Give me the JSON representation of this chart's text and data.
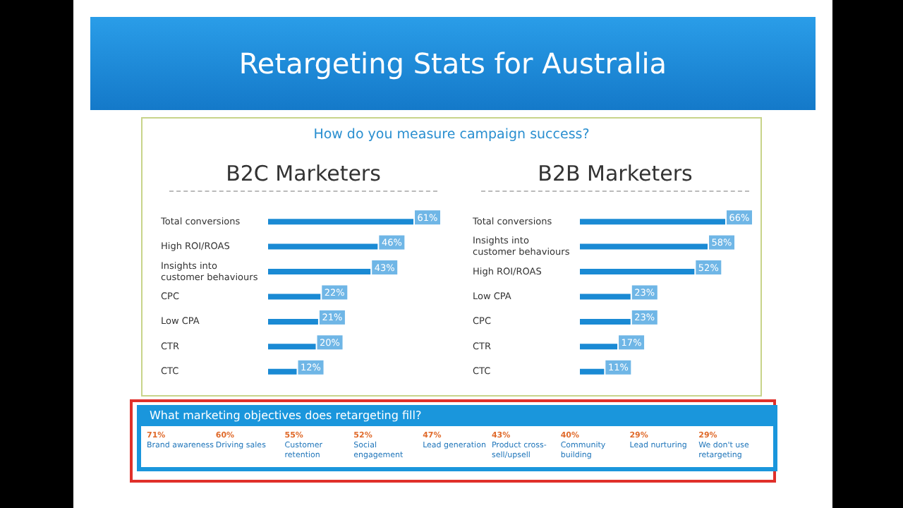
{
  "chart_data": [
    {
      "type": "bar",
      "orientation": "horizontal",
      "title": "Retargeting Stats for Australia",
      "subtitle": "How do you measure campaign success?",
      "annotations": [
        "B2C Marketers"
      ],
      "categories": [
        "Total conversions",
        "High ROI/ROAS",
        "Insights into customer behaviours",
        "CPC",
        "Low CPA",
        "CTR",
        "CTC"
      ],
      "series": [
        {
          "color": "#1a8ad4",
          "values": [
            61,
            46,
            43,
            22,
            21,
            20,
            12
          ],
          "value_labels": [
            "61%",
            "46%",
            "43%",
            "22%",
            "21%",
            "20%",
            "12%"
          ]
        }
      ]
    },
    {
      "type": "bar",
      "orientation": "horizontal",
      "title": "B2B Marketers",
      "categories": [
        "Total conversions",
        "Insights into customer behaviours",
        "High ROI/ROAS",
        "Low CPA",
        "CPC",
        "CTR",
        "CTC"
      ],
      "series": [
        {
          "color": "#1a8ad4",
          "values": [
            66,
            58,
            52,
            23,
            23,
            17,
            11
          ],
          "value_labels": [
            "66%",
            "58%",
            "52%",
            "23%",
            "23%",
            "17%",
            "11%"
          ]
        }
      ]
    },
    {
      "type": "other",
      "title": "What marketing objectives does retargeting fill?",
      "categories": [
        "Brand awareness",
        "Driving sales",
        "Customer retention",
        "Social engagement",
        "Lead generation",
        "Product cross-sell/upsell",
        "Community building",
        "Lead nurturing",
        "We don't use retargeting"
      ],
      "value_labels": [
        "71%",
        "60%",
        "55%",
        "52%",
        "47%",
        "43%",
        "40%",
        "29%",
        "29%"
      ]
    }
  ]
}
